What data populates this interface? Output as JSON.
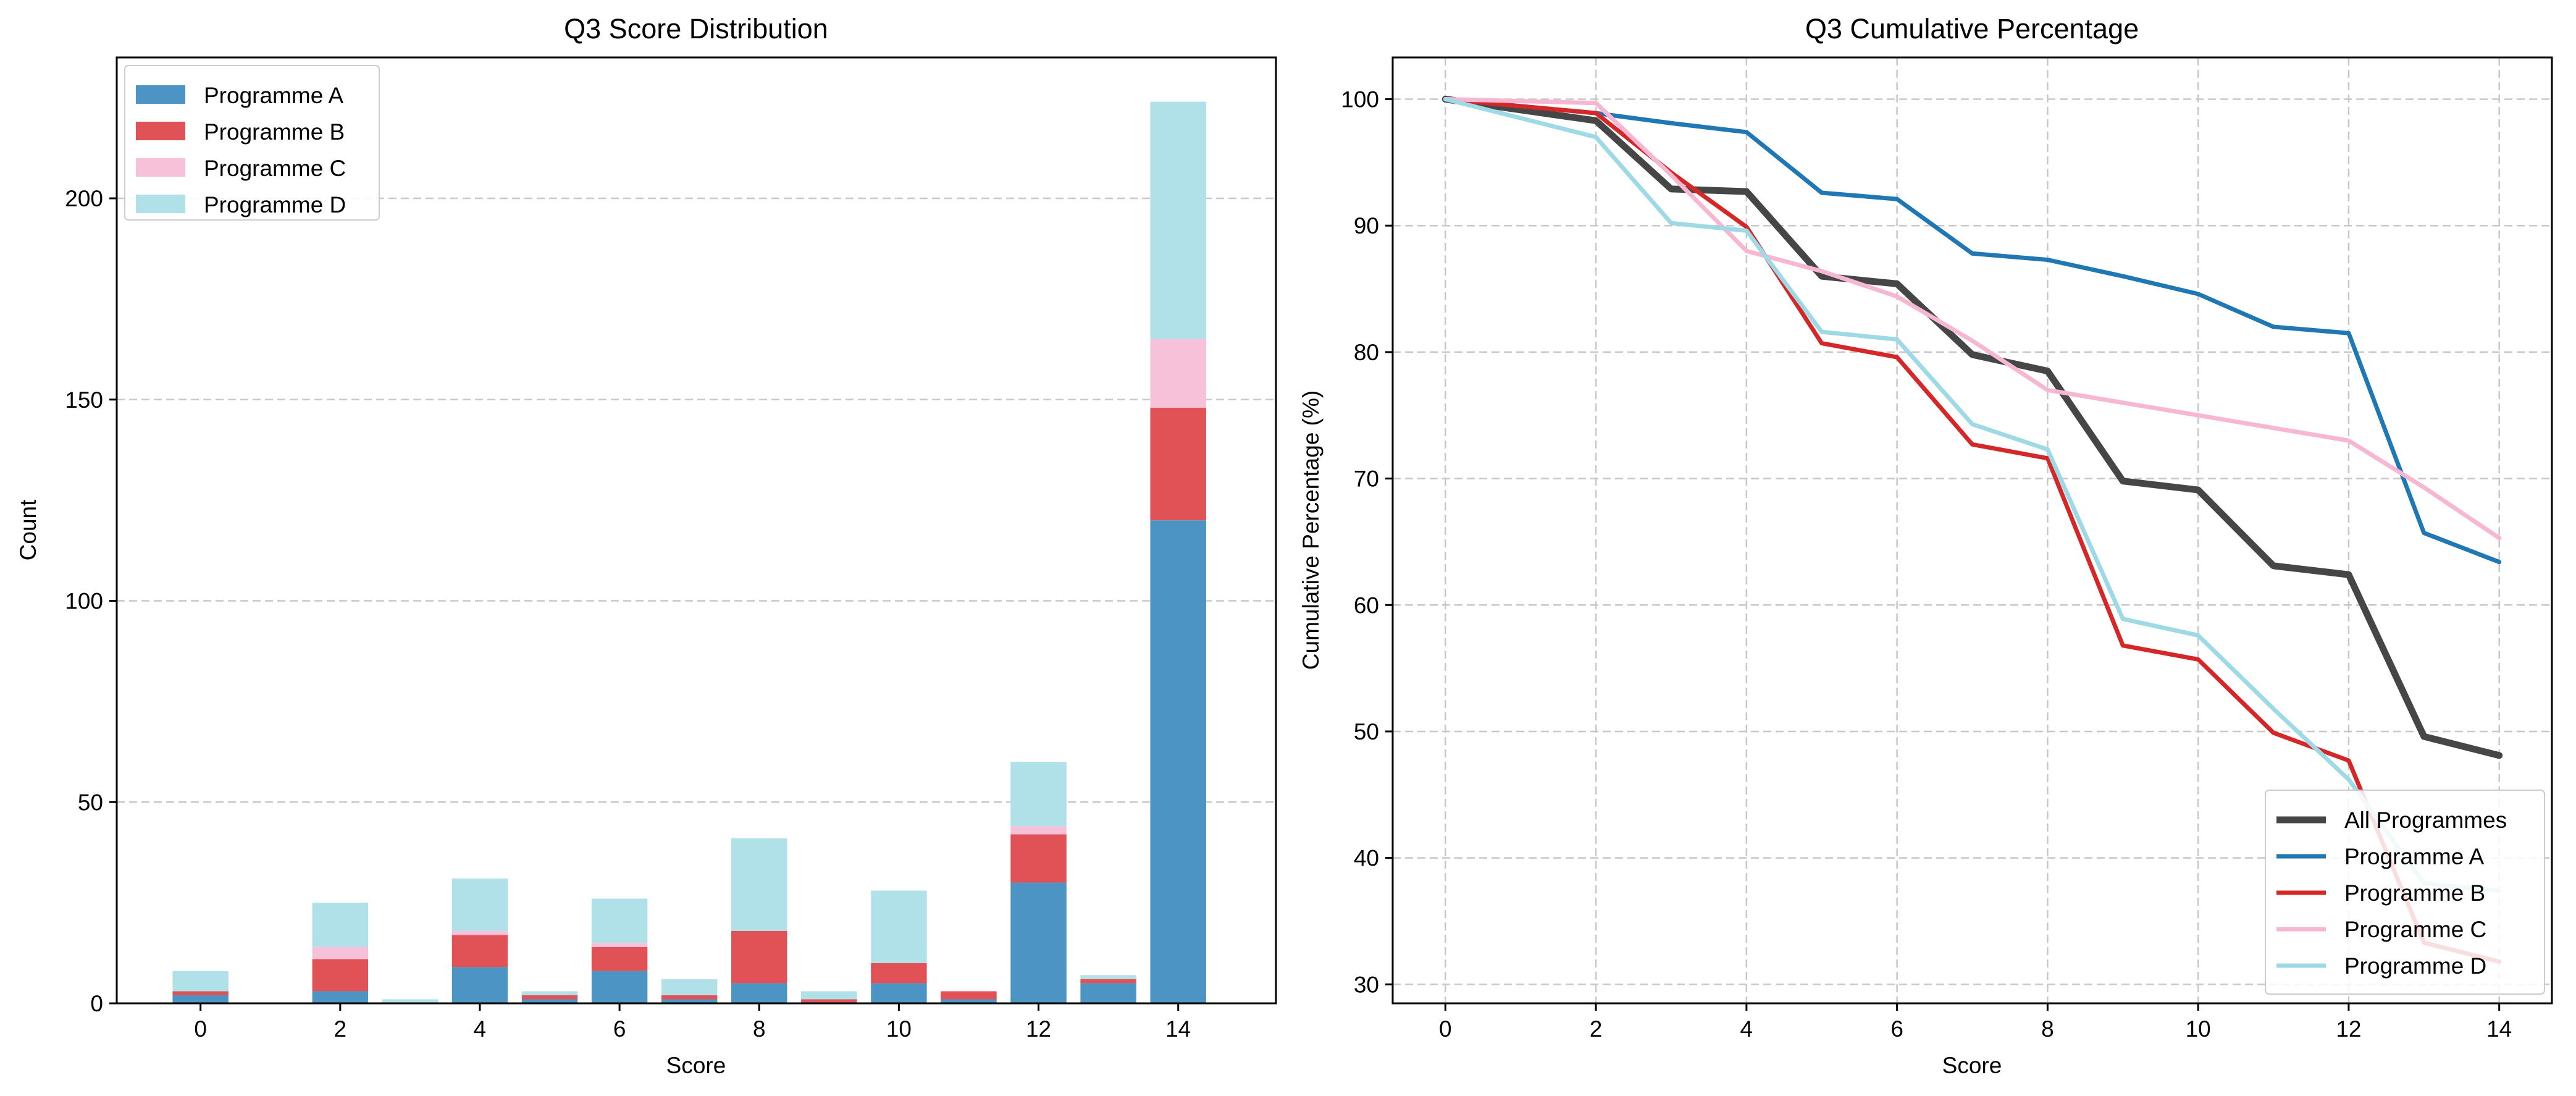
{
  "chart_data": [
    {
      "type": "bar",
      "stacked": true,
      "title": "Q3 Score Distribution",
      "xlabel": "Score",
      "ylabel": "Count",
      "xlim": [
        -1.2,
        15.4
      ],
      "ylim": [
        0,
        235
      ],
      "xticks": [
        0,
        2,
        4,
        6,
        8,
        10,
        12,
        14
      ],
      "yticks": [
        0,
        50,
        100,
        150,
        200
      ],
      "grid": "y dashed",
      "legend": "top-left",
      "categories": [
        0,
        2,
        3,
        4,
        5,
        6,
        7,
        8,
        9,
        10,
        11,
        12,
        13,
        14
      ],
      "series": [
        {
          "name": "Programme A",
          "color": "#4c94c4",
          "values": [
            2,
            3,
            0,
            9,
            1,
            8,
            1,
            5,
            0,
            5,
            1,
            30,
            5,
            120
          ]
        },
        {
          "name": "Programme B",
          "color": "#e05256",
          "values": [
            1,
            8,
            0,
            8,
            1,
            6,
            1,
            13,
            1,
            5,
            2,
            12,
            1,
            28
          ]
        },
        {
          "name": "Programme C",
          "color": "#f7c1d9",
          "values": [
            0,
            3,
            0,
            1,
            0,
            1,
            0,
            0,
            0,
            0,
            0,
            2,
            0,
            17
          ]
        },
        {
          "name": "Programme D",
          "color": "#b0e0e8",
          "values": [
            5,
            11,
            1,
            13,
            1,
            11,
            4,
            23,
            2,
            18,
            0,
            16,
            1,
            59
          ]
        }
      ]
    },
    {
      "type": "line",
      "title": "Q3 Cumulative Percentage",
      "xlabel": "Score",
      "ylabel": "Cumulative Percentage (%)",
      "xlim": [
        -0.7,
        14.7
      ],
      "ylim": [
        28.5,
        103.3
      ],
      "xticks": [
        0,
        2,
        4,
        6,
        8,
        10,
        12,
        14
      ],
      "yticks": [
        30,
        40,
        50,
        60,
        70,
        80,
        90,
        100
      ],
      "grid": "both dashed",
      "legend": "bottom-right",
      "x": [
        0,
        2,
        3,
        4,
        5,
        6,
        7,
        8,
        9,
        10,
        11,
        12,
        13,
        14
      ],
      "series": [
        {
          "name": "All Programmes",
          "color": "#464646",
          "width": 11,
          "values": [
            100,
            98.3,
            92.9,
            92.7,
            86.0,
            85.4,
            79.8,
            78.5,
            69.8,
            69.1,
            63.1,
            62.4,
            49.6,
            48.1
          ]
        },
        {
          "name": "Programme A",
          "color": "#1f77b4",
          "width": 7,
          "values": [
            100,
            98.9,
            98.1,
            97.4,
            92.6,
            92.1,
            87.8,
            87.3,
            86.0,
            84.6,
            82.0,
            81.5,
            65.7,
            63.4
          ]
        },
        {
          "name": "Programme B",
          "color": "#d62728",
          "width": 7,
          "values": [
            100,
            98.9,
            94.2,
            89.9,
            80.7,
            79.6,
            72.7,
            71.6,
            56.8,
            55.7,
            49.9,
            47.7,
            33.3,
            31.8
          ]
        },
        {
          "name": "Programme C",
          "color": "#f7b6d2",
          "width": 7,
          "values": [
            100,
            99.7,
            94.0,
            88.0,
            86.4,
            84.4,
            80.9,
            77.0,
            76.0,
            75.0,
            74.0,
            73.0,
            69.3,
            65.3
          ]
        },
        {
          "name": "Programme D",
          "color": "#9edae5",
          "width": 7,
          "values": [
            100,
            97.0,
            90.2,
            89.6,
            81.6,
            81.0,
            74.3,
            72.3,
            58.9,
            57.6,
            51.8,
            46.2,
            38.0,
            37.4
          ]
        }
      ]
    }
  ]
}
